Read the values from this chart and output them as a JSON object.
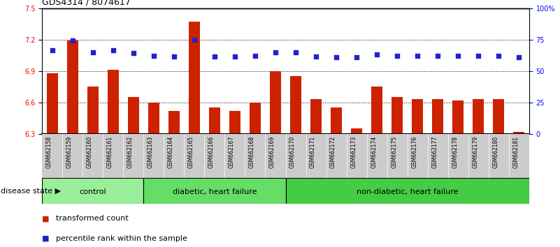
{
  "title": "GDS4314 / 8074617",
  "samples": [
    "GSM662158",
    "GSM662159",
    "GSM662160",
    "GSM662161",
    "GSM662162",
    "GSM662163",
    "GSM662164",
    "GSM662165",
    "GSM662166",
    "GSM662167",
    "GSM662168",
    "GSM662169",
    "GSM662170",
    "GSM662171",
    "GSM662172",
    "GSM662173",
    "GSM662174",
    "GSM662175",
    "GSM662176",
    "GSM662177",
    "GSM662178",
    "GSM662179",
    "GSM662180",
    "GSM662181"
  ],
  "bar_values": [
    6.88,
    7.19,
    6.75,
    6.91,
    6.65,
    6.6,
    6.52,
    7.37,
    6.55,
    6.52,
    6.6,
    6.9,
    6.85,
    6.63,
    6.55,
    6.35,
    6.75,
    6.65,
    6.63,
    6.63,
    6.62,
    6.63,
    6.63,
    6.32
  ],
  "dot_values": [
    7.1,
    7.19,
    7.08,
    7.1,
    7.07,
    7.05,
    7.04,
    7.2,
    7.04,
    7.04,
    7.05,
    7.08,
    7.08,
    7.04,
    7.03,
    7.03,
    7.06,
    7.05,
    7.05,
    7.05,
    7.05,
    7.05,
    7.05,
    7.03
  ],
  "ylim_left": [
    6.3,
    7.5
  ],
  "ylim_right": [
    0,
    100
  ],
  "yticks_left": [
    6.3,
    6.6,
    6.9,
    7.2,
    7.5
  ],
  "yticks_right": [
    0,
    25,
    50,
    75,
    100
  ],
  "ytick_labels_right": [
    "0",
    "25",
    "50",
    "75",
    "100%"
  ],
  "hlines": [
    6.6,
    6.9,
    7.2
  ],
  "bar_color": "#cc2200",
  "dot_color": "#2222cc",
  "bar_width": 0.55,
  "groups": [
    {
      "label": "control",
      "start": 0,
      "end": 5,
      "color": "#99ee99"
    },
    {
      "label": "diabetic, heart failure",
      "start": 5,
      "end": 12,
      "color": "#66dd66"
    },
    {
      "label": "non-diabetic, heart failure",
      "start": 12,
      "end": 24,
      "color": "#44cc44"
    }
  ],
  "disease_state_label": "disease state",
  "legend_bar_label": "transformed count",
  "legend_dot_label": "percentile rank within the sample",
  "bg_color": "#ffffff",
  "tick_bg_color": "#cccccc",
  "title_fontsize": 9,
  "tick_fontsize": 7,
  "sample_fontsize": 5.5,
  "group_fontsize": 8,
  "legend_fontsize": 8
}
